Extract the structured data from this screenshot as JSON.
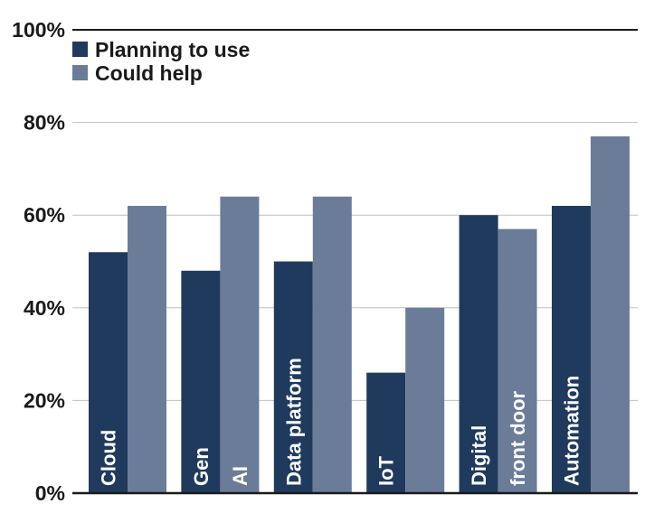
{
  "chart_data": {
    "type": "bar",
    "categories": [
      [
        "Cloud"
      ],
      [
        "Gen",
        "AI"
      ],
      [
        "Data platform"
      ],
      [
        "IoT"
      ],
      [
        "Digital",
        "front door"
      ],
      [
        "Automation"
      ]
    ],
    "series": [
      {
        "name": "Planning to use",
        "values": [
          52,
          48,
          50,
          26,
          60,
          62
        ],
        "color": "#1f3a5c"
      },
      {
        "name": "Could help",
        "values": [
          62,
          64,
          64,
          40,
          57,
          77
        ],
        "color": "#6b7c99"
      }
    ],
    "ylim": [
      0,
      100
    ],
    "yticks": [
      0,
      20,
      40,
      60,
      80,
      100
    ],
    "ytick_labels": [
      "0%",
      "20%",
      "40%",
      "60%",
      "80%",
      "100%"
    ],
    "legend_position": "top-left",
    "grid": true,
    "gridline_color": "#bfbfbf",
    "axis_color": "#1a1a1a"
  }
}
